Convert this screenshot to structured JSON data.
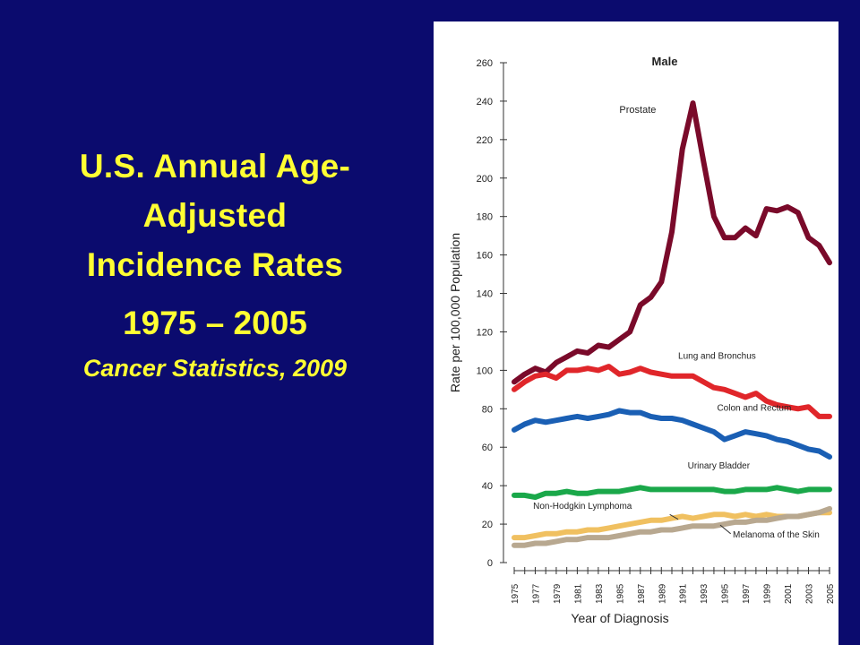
{
  "slide": {
    "title": "U.S. Annual Age-Adjusted Incidence Rates",
    "title_lines": [
      "U.S. Annual Age-",
      "Adjusted",
      "Incidence Rates"
    ],
    "years": "1975 – 2005",
    "source": "Cancer Statistics, 2009"
  },
  "colors": {
    "background": "#0b0b6e",
    "title_text": "#ffff33",
    "prostate": "#7a0a2a",
    "lung_bronchus": "#e0262a",
    "colon_rectum": "#1a5fb4",
    "urinary_bladder": "#1aa84a",
    "non_hodgkin_lymphoma": "#f0c060",
    "melanoma": "#b8a890"
  },
  "chart_data": {
    "type": "line",
    "title": "Male",
    "xlabel": "Year of Diagnosis",
    "ylabel": "Rate per 100,000 Population",
    "ylim": [
      0,
      260
    ],
    "yticks": [
      0,
      20,
      40,
      60,
      80,
      100,
      120,
      140,
      160,
      180,
      200,
      220,
      240,
      260
    ],
    "xlim": [
      1975,
      2005
    ],
    "xtick_labels": [
      "1975",
      "1977",
      "1979",
      "1981",
      "1983",
      "1985",
      "1987",
      "1989",
      "1991",
      "1993",
      "1995",
      "1997",
      "1999",
      "2001",
      "2003",
      "2005"
    ],
    "x": [
      1975,
      1976,
      1977,
      1978,
      1979,
      1980,
      1981,
      1982,
      1983,
      1984,
      1985,
      1986,
      1987,
      1988,
      1989,
      1990,
      1991,
      1992,
      1993,
      1994,
      1995,
      1996,
      1997,
      1998,
      1999,
      2000,
      2001,
      2002,
      2003,
      2004,
      2005
    ],
    "series": [
      {
        "name": "Prostate",
        "color_key": "prostate",
        "values": [
          94,
          98,
          101,
          99,
          104,
          107,
          110,
          109,
          113,
          112,
          116,
          120,
          134,
          138,
          146,
          172,
          215,
          239,
          209,
          180,
          169,
          169,
          174,
          170,
          184,
          183,
          185,
          182,
          169,
          165,
          156
        ]
      },
      {
        "name": "Lung and Bronchus",
        "color_key": "lung_bronchus",
        "values": [
          90,
          94,
          97,
          98,
          96,
          100,
          100,
          101,
          100,
          102,
          98,
          99,
          101,
          99,
          98,
          97,
          97,
          97,
          94,
          91,
          90,
          88,
          86,
          88,
          84,
          82,
          81,
          80,
          81,
          76,
          76
        ]
      },
      {
        "name": "Colon and Rectum",
        "color_key": "colon_rectum",
        "values": [
          69,
          72,
          74,
          73,
          74,
          75,
          76,
          75,
          76,
          77,
          79,
          78,
          78,
          76,
          75,
          75,
          74,
          72,
          70,
          68,
          64,
          66,
          68,
          67,
          66,
          64,
          63,
          61,
          59,
          58,
          55
        ]
      },
      {
        "name": "Urinary Bladder",
        "color_key": "urinary_bladder",
        "values": [
          35,
          35,
          34,
          36,
          36,
          37,
          36,
          36,
          37,
          37,
          37,
          38,
          39,
          38,
          38,
          38,
          38,
          38,
          38,
          38,
          37,
          37,
          38,
          38,
          38,
          39,
          38,
          37,
          38,
          38,
          38
        ]
      },
      {
        "name": "Non-Hodgkin Lymphoma",
        "color_key": "non_hodgkin_lymphoma",
        "values": [
          13,
          13,
          14,
          15,
          15,
          16,
          16,
          17,
          17,
          18,
          19,
          20,
          21,
          22,
          22,
          23,
          24,
          23,
          24,
          25,
          25,
          24,
          25,
          24,
          25,
          24,
          24,
          24,
          25,
          26,
          26
        ]
      },
      {
        "name": "Melanoma of the Skin",
        "color_key": "melanoma",
        "values": [
          9,
          9,
          10,
          10,
          11,
          12,
          12,
          13,
          13,
          13,
          14,
          15,
          16,
          16,
          17,
          17,
          18,
          19,
          19,
          19,
          20,
          21,
          21,
          22,
          22,
          23,
          24,
          24,
          25,
          26,
          28
        ]
      }
    ]
  }
}
